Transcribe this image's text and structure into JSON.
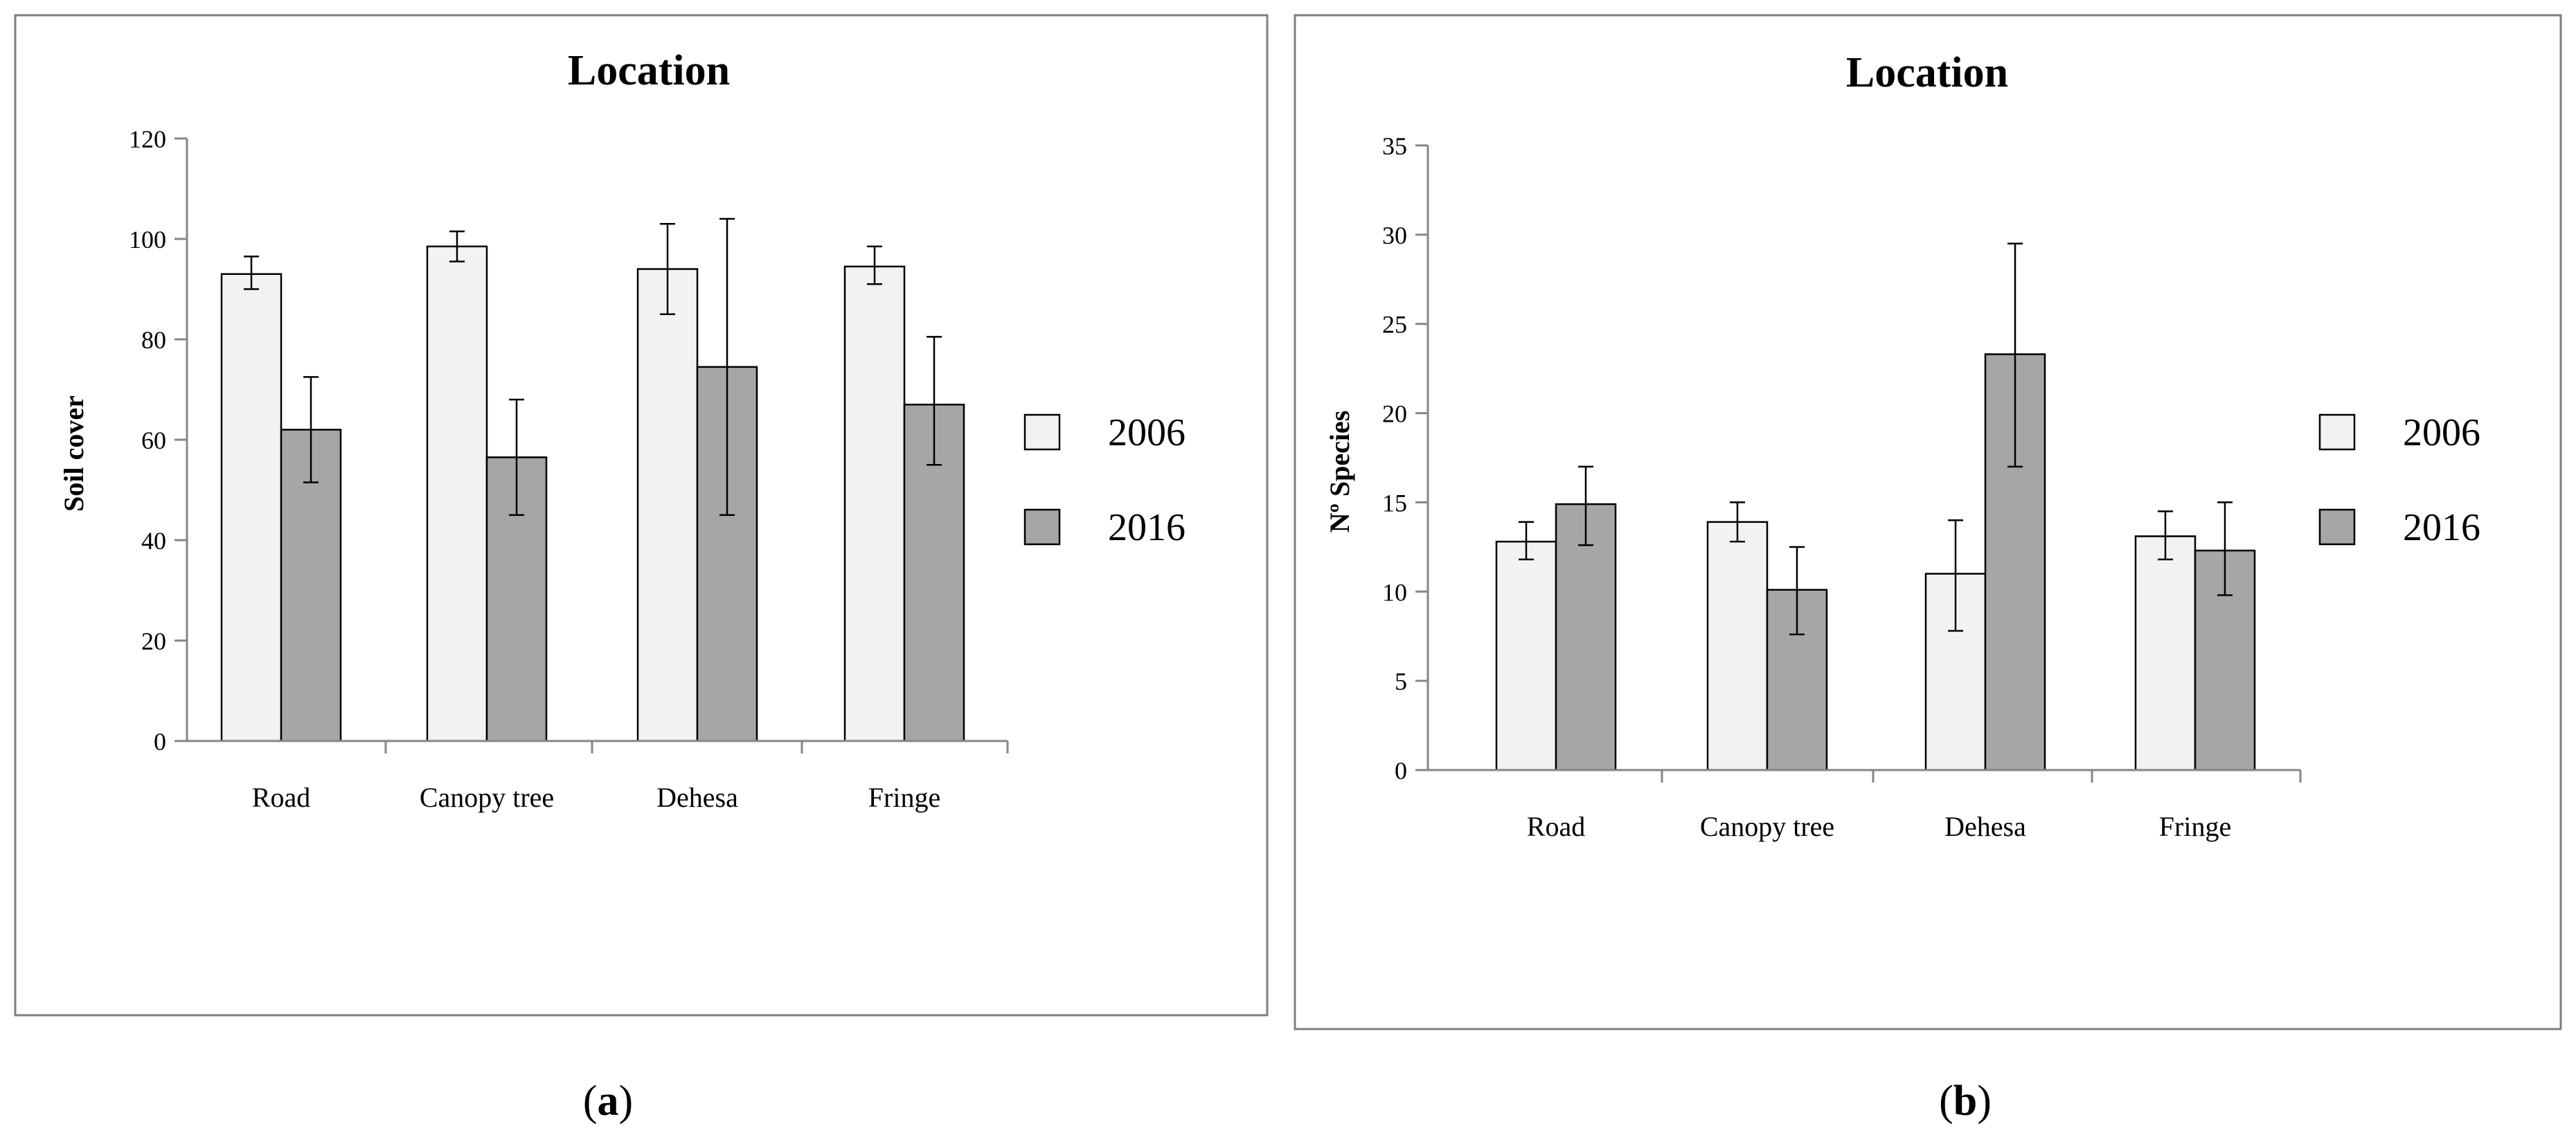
{
  "colors": {
    "bar_2006": "#f2f2f2",
    "bar_2016": "#a6a6a6",
    "stroke": "#000000",
    "frame": "#7f7f7f",
    "axis": "#868686"
  },
  "chart_data": [
    {
      "panel": "a",
      "panel_label_open": "(",
      "panel_label_letter": "a",
      "panel_label_close": ")",
      "type": "bar",
      "title": "Location",
      "xlabel": "",
      "ylabel": "Soil cover",
      "ylim": [
        0,
        120
      ],
      "yticks": [
        0,
        20,
        40,
        60,
        80,
        100,
        120
      ],
      "categories": [
        "Road",
        "Canopy tree",
        "Dehesa",
        "Fringe"
      ],
      "legend_position": "right",
      "series": [
        {
          "name": "2006",
          "values": [
            93,
            98.5,
            94,
            94.5
          ],
          "error_low": [
            90,
            95.5,
            85,
            91
          ],
          "error_high": [
            96.5,
            101.5,
            103,
            98.5
          ]
        },
        {
          "name": "2016",
          "values": [
            62,
            56.5,
            74.5,
            67
          ],
          "error_low": [
            51.5,
            45,
            45,
            55
          ],
          "error_high": [
            72.5,
            68,
            104,
            80.5
          ]
        }
      ]
    },
    {
      "panel": "b",
      "panel_label_open": "(",
      "panel_label_letter": "b",
      "panel_label_close": ")",
      "type": "bar",
      "title": "Location",
      "xlabel": "",
      "ylabel": "Nº Species",
      "ylim": [
        0,
        35
      ],
      "yticks": [
        0,
        5,
        10,
        15,
        20,
        25,
        30,
        35
      ],
      "categories": [
        "Road",
        "Canopy tree",
        "Dehesa",
        "Fringe"
      ],
      "legend_position": "right",
      "series": [
        {
          "name": "2006",
          "values": [
            12.8,
            13.9,
            11,
            13.1
          ],
          "error_low": [
            11.8,
            12.8,
            7.8,
            11.8
          ],
          "error_high": [
            13.9,
            15,
            14,
            14.5
          ]
        },
        {
          "name": "2016",
          "values": [
            14.9,
            10.1,
            23.3,
            12.3
          ],
          "error_low": [
            12.6,
            7.6,
            17,
            9.8
          ],
          "error_high": [
            17,
            12.5,
            29.5,
            15
          ]
        }
      ]
    }
  ]
}
